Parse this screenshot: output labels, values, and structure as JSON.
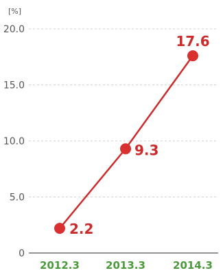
{
  "chart_data": {
    "type": "line",
    "unit_label": "[%]",
    "categories": [
      "2012.3",
      "2013.3",
      "2014.3"
    ],
    "values": [
      2.2,
      9.3,
      17.6
    ],
    "data_labels": [
      "2.2",
      "9.3",
      "17.6"
    ],
    "y_ticks": [
      0,
      5.0,
      10.0,
      15.0,
      20.0
    ],
    "y_tick_labels": [
      "0",
      "5.0",
      "10.0",
      "15.0",
      "20.0"
    ],
    "ylim": [
      0,
      20
    ],
    "grid": true,
    "legend": "none"
  },
  "colors": {
    "line": "#cc2b2b",
    "marker": "#d93030",
    "data_label": "#cc2b2b",
    "x_label": "#4a9a3c",
    "grid": "#d0d0d0",
    "axis": "#555555"
  }
}
